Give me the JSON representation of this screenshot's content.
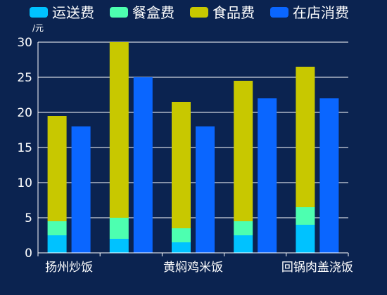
{
  "chart_data": {
    "type": "bar",
    "categories": [
      "扬州炒饭",
      "",
      "黄焖鸡米饭",
      "",
      "回锅肉盖浇饭"
    ],
    "series": [
      {
        "name": "运送费",
        "stack": "total",
        "color": "#00c2ff",
        "values": [
          2.5,
          2.0,
          1.5,
          2.5,
          4.0
        ]
      },
      {
        "name": "餐盒费",
        "stack": "total",
        "color": "#4dffb0",
        "values": [
          2.0,
          3.0,
          2.0,
          2.0,
          2.5
        ]
      },
      {
        "name": "食品费",
        "stack": "total",
        "color": "#c8c800",
        "values": [
          15.0,
          25.0,
          18.0,
          20.0,
          20.0
        ]
      },
      {
        "name": "在店消费",
        "stack": "instore",
        "color": "#0a66ff",
        "values": [
          18,
          25,
          18,
          22,
          22
        ]
      }
    ],
    "ylim": [
      0,
      30
    ],
    "yticks": [
      0,
      5,
      10,
      15,
      20,
      25,
      30
    ],
    "ylabel": "/元",
    "grid": true,
    "legend_position": "top"
  }
}
